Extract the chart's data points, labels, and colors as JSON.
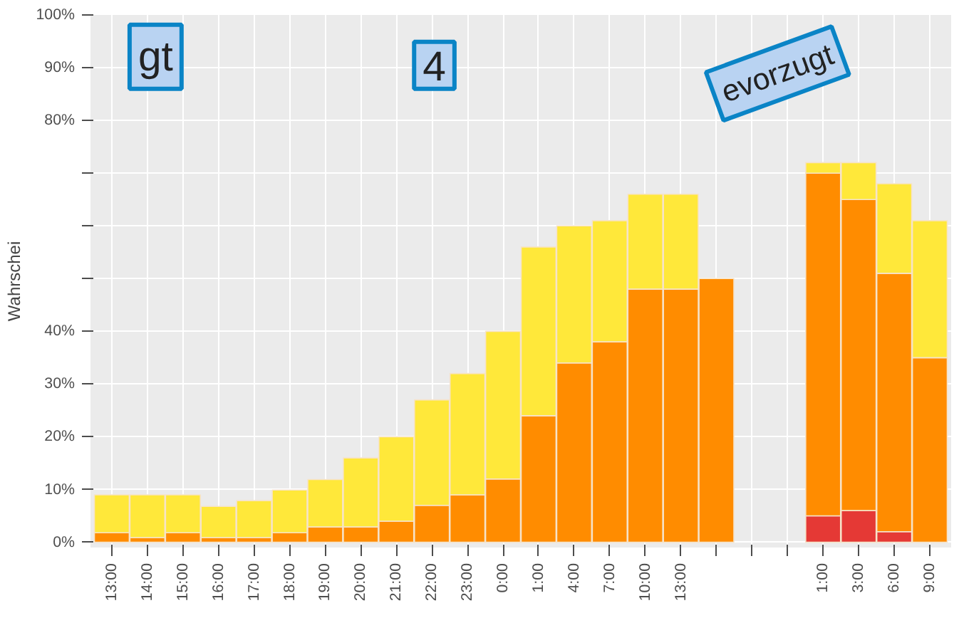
{
  "chart_data": {
    "type": "bar",
    "stacked": true,
    "ylabel": "Wahrschei",
    "categories": [
      "13:00",
      "14:00",
      "15:00",
      "16:00",
      "17:00",
      "18:00",
      "19:00",
      "20:00",
      "21:00",
      "22:00",
      "23:00",
      "0:00",
      "1:00",
      "4:00",
      "7:00",
      "10:00",
      "13:00",
      null,
      null,
      null,
      "1:00",
      "3:00",
      "6:00",
      "9:00"
    ],
    "series": [
      {
        "color": "#e53935",
        "values": [
          0,
          0,
          0,
          0,
          0,
          0,
          0,
          0,
          0,
          0,
          0,
          0,
          0,
          0,
          0,
          0,
          0,
          null,
          null,
          null,
          5,
          6,
          2,
          0
        ]
      },
      {
        "color": "#ff8c00",
        "values": [
          1.8,
          0.9,
          1.8,
          0.9,
          0.9,
          1.8,
          2.9,
          2.9,
          4,
          7,
          9,
          12,
          24,
          34,
          38,
          48,
          48,
          50,
          null,
          null,
          65,
          59,
          49,
          35
        ]
      },
      {
        "color": "#ffe83a",
        "values": [
          7.2,
          8.1,
          7.2,
          5.9,
          7,
          8.1,
          9,
          13.1,
          16,
          20,
          23,
          28,
          32,
          26,
          23,
          18,
          18,
          null,
          null,
          null,
          2,
          7,
          17,
          26
        ]
      }
    ],
    "ylim": [
      -1,
      100
    ],
    "yticks": [
      {
        "value": 0,
        "label": "0%"
      },
      {
        "value": 10,
        "label": "10%"
      },
      {
        "value": 20,
        "label": "20%"
      },
      {
        "value": 30,
        "label": "30%"
      },
      {
        "value": 40,
        "label": "40%"
      },
      {
        "value": 50,
        "label": null
      },
      {
        "value": 60,
        "label": null
      },
      {
        "value": 70,
        "label": null
      },
      {
        "value": 80,
        "label": "80%"
      },
      {
        "value": 90,
        "label": "90%"
      },
      {
        "value": 100,
        "label": "100%"
      }
    ],
    "grid": true,
    "annotations": [
      "gt",
      "4",
      "evorzugt"
    ]
  }
}
